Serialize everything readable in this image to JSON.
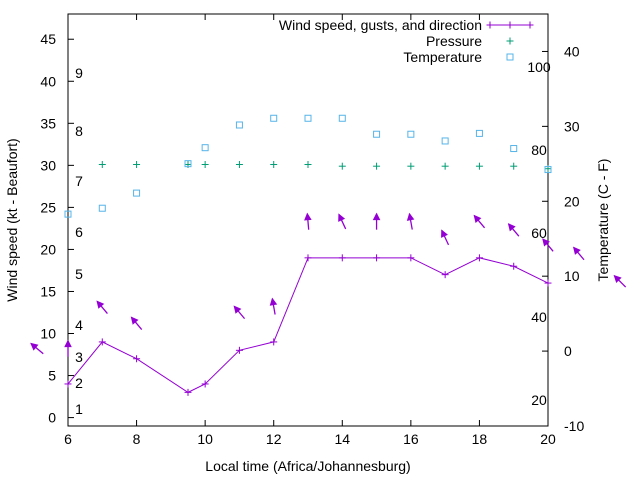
{
  "chart_data": {
    "type": "line",
    "xlabel": "Local time (Africa/Johannesburg)",
    "ylabel_left": "Wind speed (kt - Beaufort)",
    "ylabel_right": "Temperature (C - F)",
    "xlim": [
      6,
      20
    ],
    "xticks": [
      6,
      8,
      10,
      12,
      14,
      16,
      18,
      20
    ],
    "ylim_left": [
      -1,
      48
    ],
    "yticks_left": [
      0,
      5,
      10,
      15,
      20,
      25,
      30,
      35,
      40,
      45
    ],
    "ylim_right": [
      -10,
      45
    ],
    "yticks_right": [
      -10,
      0,
      10,
      20,
      30,
      40
    ],
    "beaufort_labels": [
      "1",
      "2",
      "3",
      "4",
      "5",
      "6",
      "7",
      "8",
      "9"
    ],
    "fahrenheit_labels": [
      "20",
      "40",
      "60",
      "80",
      "100"
    ],
    "legend": [
      {
        "label": "Wind speed, gusts, and direction",
        "marker": "plus-line"
      },
      {
        "label": "Pressure",
        "marker": "plus"
      },
      {
        "label": "Temperature",
        "marker": "square"
      }
    ],
    "series": [
      {
        "name": "Wind speed, gusts, and direction",
        "color": "#9400d3",
        "x": [
          6,
          7,
          8,
          9.5,
          10,
          11,
          12,
          13,
          14,
          15,
          16,
          17,
          18,
          19,
          20
        ],
        "y": [
          4,
          9,
          7,
          3,
          4,
          8,
          9,
          19,
          19,
          19,
          19,
          17,
          19,
          18,
          16
        ]
      },
      {
        "name": "Pressure",
        "color": "#009e73",
        "x": [
          9.5,
          7,
          8,
          10,
          11,
          12,
          13,
          14,
          15,
          16,
          17,
          18,
          19,
          20
        ],
        "y": [
          30.1,
          30.1,
          30.1,
          30.1,
          30.1,
          30.1,
          30.1,
          29.9,
          29.9,
          29.9,
          29.9,
          29.9,
          29.9,
          29.6
        ]
      },
      {
        "name": "Temperature",
        "color": "#56b4e9",
        "x": [
          6,
          7,
          8,
          9.5,
          10,
          11,
          12,
          13,
          14,
          15,
          16,
          17,
          18,
          19,
          20
        ],
        "y": [
          24.2,
          24.9,
          26.7,
          30.2,
          32.1,
          34.8,
          35.6,
          35.6,
          35.6,
          33.7,
          33.7,
          32.9,
          33.8,
          32.0,
          29.5
        ]
      }
    ],
    "direction_arrows": {
      "color": "#9400d3",
      "x": [
        5.1,
        6,
        7,
        8,
        11,
        12,
        13,
        14,
        15,
        16,
        17,
        18,
        19,
        20,
        20.9,
        22.1
      ],
      "y": [
        8.2,
        8.2,
        13.1,
        11.2,
        12.5,
        13.2,
        23.3,
        23.3,
        23.3,
        23.3,
        21.4,
        23.3,
        22.3,
        20.5,
        19.5,
        16.2
      ],
      "angle": [
        50,
        0,
        40,
        40,
        40,
        10,
        5,
        25,
        0,
        10,
        25,
        40,
        40,
        40,
        40,
        45
      ]
    }
  }
}
